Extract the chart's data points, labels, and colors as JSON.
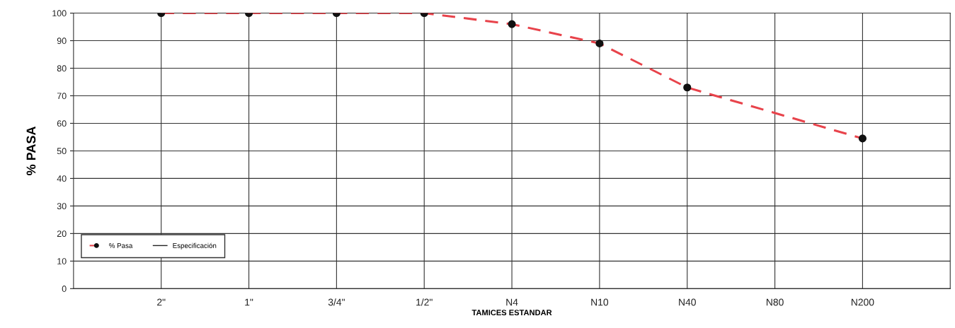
{
  "chart_data": {
    "type": "line",
    "xlabel": "TAMICES ESTANDAR",
    "ylabel": "% PASA",
    "categories": [
      "2\"",
      "1\"",
      "3/4\"",
      "1/2\"",
      "N4",
      "N10",
      "N40",
      "N80",
      "N200"
    ],
    "series": [
      {
        "name": "% Pasa",
        "color": "#e8434b",
        "values": [
          100,
          100,
          100,
          100,
          96,
          89,
          73,
          null,
          54.5
        ],
        "marker": "circle",
        "line_style": "dashed"
      },
      {
        "name": "Especificación",
        "color": "#222222",
        "values": [
          null,
          null,
          null,
          null,
          null,
          null,
          null,
          null,
          null
        ],
        "marker": "none",
        "line_style": "solid"
      }
    ],
    "ylim": [
      0,
      100
    ],
    "yticks": [
      0,
      10,
      20,
      30,
      40,
      50,
      60,
      70,
      80,
      90,
      100
    ],
    "grid": true,
    "legend": "bottom left"
  }
}
